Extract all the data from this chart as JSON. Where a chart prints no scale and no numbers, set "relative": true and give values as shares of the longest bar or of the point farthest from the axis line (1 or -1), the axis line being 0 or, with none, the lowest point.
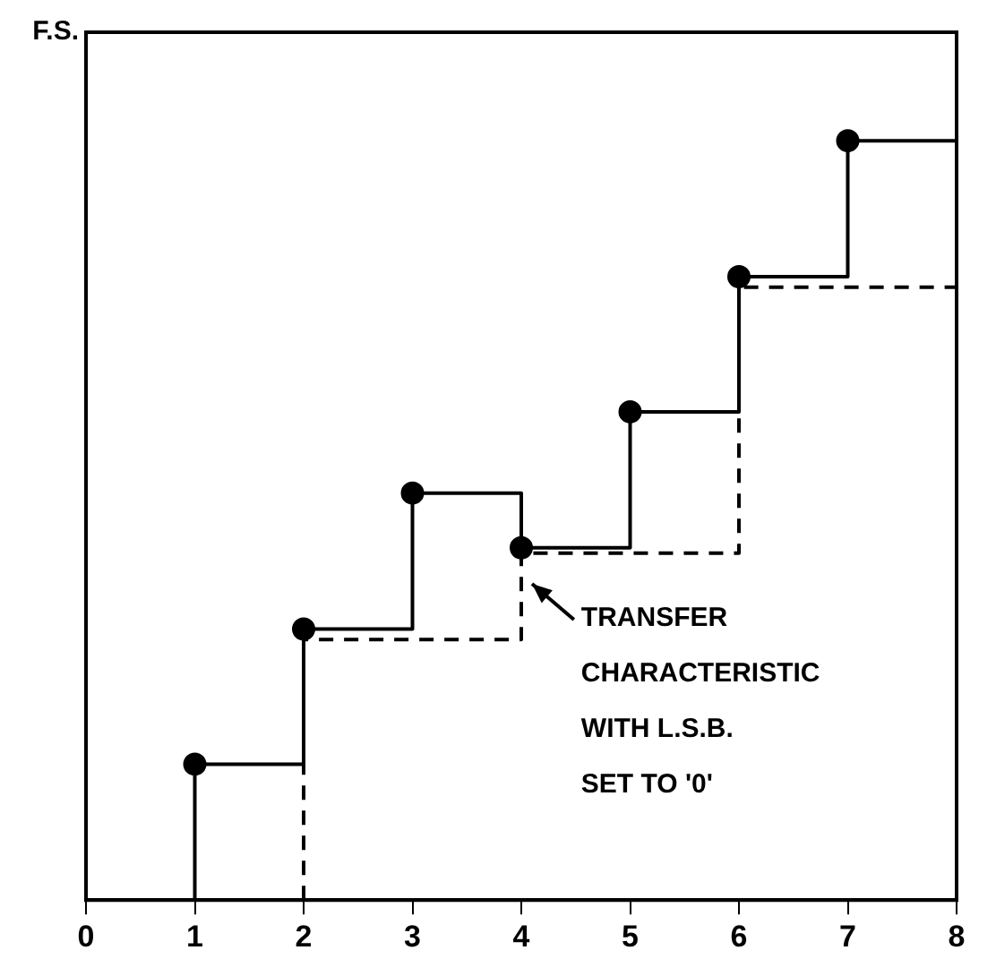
{
  "chart_data": {
    "type": "step",
    "relative": true,
    "xlim": [
      0,
      8
    ],
    "xticks": [
      0,
      1,
      2,
      3,
      4,
      5,
      6,
      7,
      8
    ],
    "grid": false,
    "series": [
      {
        "color": "#000000",
        "x": [
          1,
          1,
          2,
          3,
          4,
          5,
          6,
          7,
          8
        ],
        "values": [
          0,
          0.179,
          0.357,
          0.536,
          0.464,
          0.643,
          0.821,
          1,
          1
        ],
        "line_style": "solid",
        "marker": "none"
      },
      {
        "color": "#000000",
        "x": [
          2,
          2,
          4,
          6,
          8
        ],
        "values": [
          0,
          0.343,
          0.457,
          0.807,
          0.807
        ],
        "line_style": "dashed",
        "marker": "none"
      },
      {
        "type": "scatter",
        "color": "#000000",
        "x": [
          1,
          2,
          3,
          4,
          5,
          6,
          7
        ],
        "values": [
          0.179,
          0.357,
          0.536,
          0.464,
          0.643,
          0.821,
          1
        ],
        "marker": "circle"
      }
    ],
    "annotations": [
      "F.S.",
      "TRANSFER\nCHARACTERISTIC\nWITH L.S.B.\nSET TO '0'"
    ]
  }
}
